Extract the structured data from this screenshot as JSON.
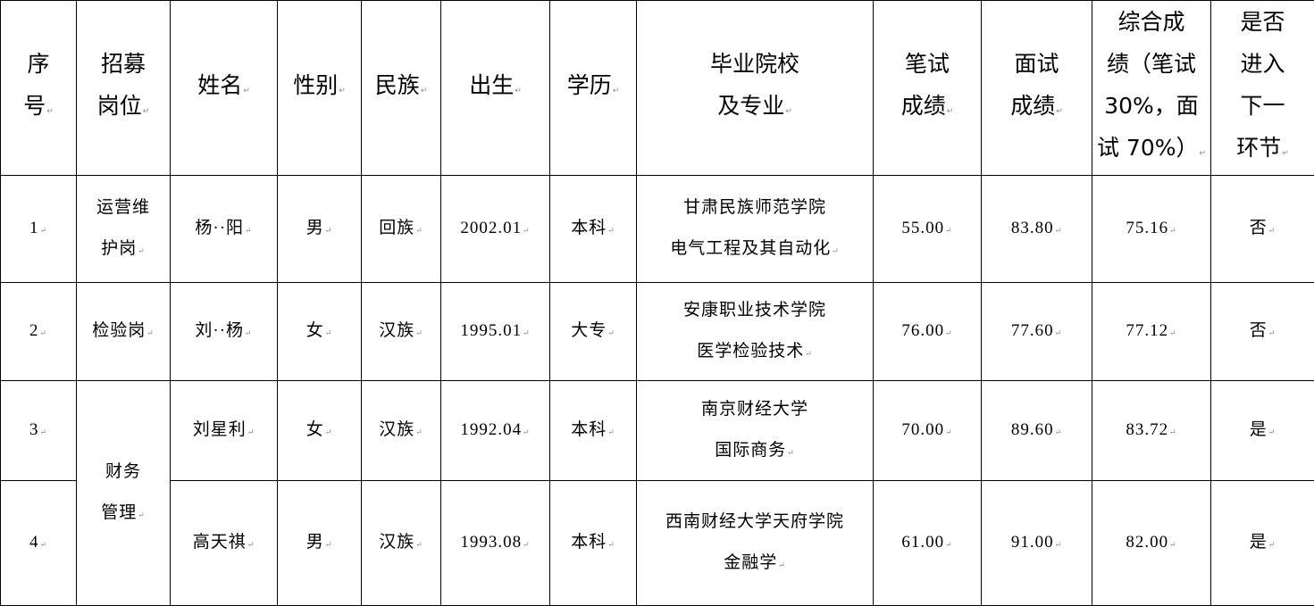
{
  "headers": [
    "序\n号",
    "招募\n岗位",
    "姓名",
    "性别",
    "民族",
    "出生",
    "学历",
    "毕业院校\n及专业",
    "笔试\n成绩",
    "面试\n成绩",
    "综合成\n绩（笔试\n30%，面\n试 70%）",
    "是否\n进入\n下一\n环节"
  ],
  "rows": [
    {
      "no": "1",
      "post": "运营维\n护岗",
      "name": "杨··阳",
      "gender": "男",
      "ethnicity": "回族",
      "birth": "2002.01",
      "education": "本科",
      "school": "甘肃民族师范学院\n电气工程及其自动化",
      "written": "55.00",
      "interview": "83.80",
      "total": "75.16",
      "advance": "否"
    },
    {
      "no": "2",
      "post": "检验岗",
      "name": "刘··杨",
      "gender": "女",
      "ethnicity": "汉族",
      "birth": "1995.01",
      "education": "大专",
      "school": "安康职业技术学院\n医学检验技术",
      "written": "76.00",
      "interview": "77.60",
      "total": "77.12",
      "advance": "否"
    },
    {
      "no": "3",
      "post": "财务\n管理",
      "name": "刘星利",
      "gender": "女",
      "ethnicity": "汉族",
      "birth": "1992.04",
      "education": "本科",
      "school": "南京财经大学\n国际商务",
      "written": "70.00",
      "interview": "89.60",
      "total": "83.72",
      "advance": "是"
    },
    {
      "no": "4",
      "name": "高天祺",
      "gender": "男",
      "ethnicity": "汉族",
      "birth": "1993.08",
      "education": "本科",
      "school": "西南财经大学天府学院\n金融学",
      "written": "61.00",
      "interview": "91.00",
      "total": "82.00",
      "advance": "是"
    }
  ]
}
